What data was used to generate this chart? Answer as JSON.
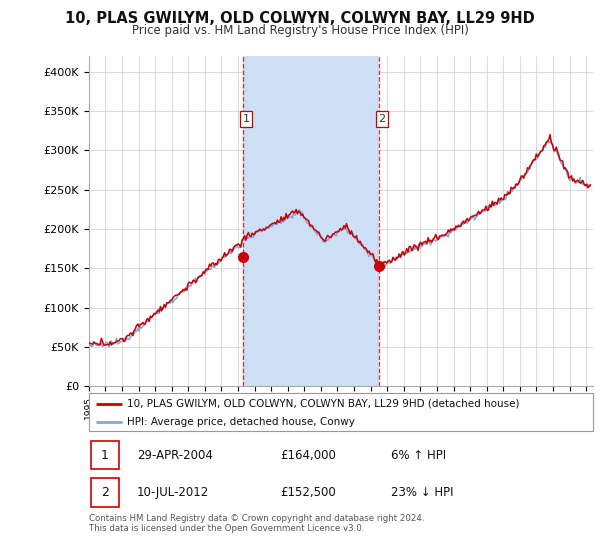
{
  "title": "10, PLAS GWILYM, OLD COLWYN, COLWYN BAY, LL29 9HD",
  "subtitle": "Price paid vs. HM Land Registry's House Price Index (HPI)",
  "ylim": [
    0,
    420000
  ],
  "yticks": [
    0,
    50000,
    100000,
    150000,
    200000,
    250000,
    300000,
    350000,
    400000
  ],
  "ytick_labels": [
    "£0",
    "£50K",
    "£100K",
    "£150K",
    "£200K",
    "£250K",
    "£300K",
    "£350K",
    "£400K"
  ],
  "transaction1": {
    "date": "29-APR-2004",
    "price": 164000,
    "pct": "6%",
    "direction": "↑",
    "label": "1",
    "year": 2004.33
  },
  "transaction2": {
    "date": "10-JUL-2012",
    "price": 152500,
    "pct": "23%",
    "direction": "↓",
    "label": "2",
    "year": 2012.53
  },
  "legend_property": "10, PLAS GWILYM, OLD COLWYN, COLWYN BAY, LL29 9HD (detached house)",
  "legend_hpi": "HPI: Average price, detached house, Conwy",
  "property_color": "#cc0000",
  "hpi_color": "#7aabdc",
  "vline_color": "#cc0000",
  "shade_color": "#ccdff5",
  "footnote": "Contains HM Land Registry data © Crown copyright and database right 2024.\nThis data is licensed under the Open Government Licence v3.0.",
  "background_color": "#ffffff",
  "grid_color": "#cccccc"
}
